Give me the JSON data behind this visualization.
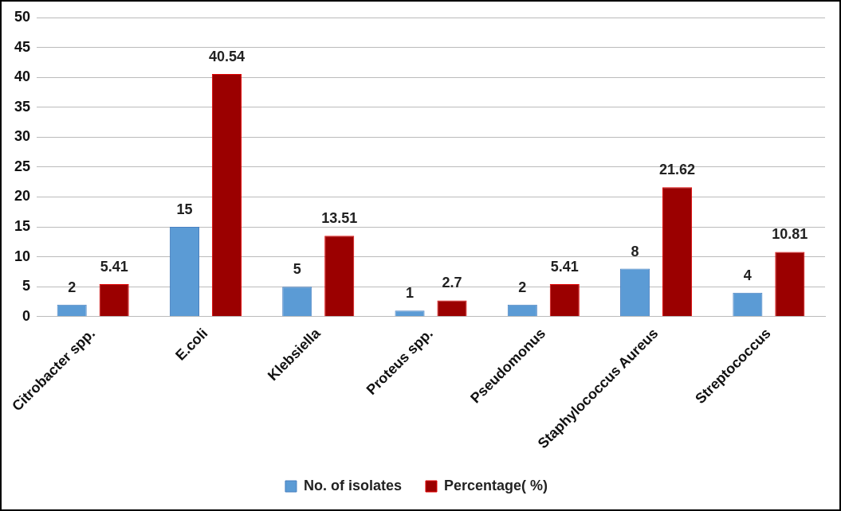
{
  "chart_data": {
    "type": "bar",
    "categories": [
      "Citrobacter spp.",
      "E.coli",
      "Klebsiella",
      "Proteus spp.",
      "Pseudomonus",
      "Staphylococcus Aureus",
      "Streptococcus"
    ],
    "series": [
      {
        "name": "No. of isolates",
        "color": "#5b9bd5",
        "values": [
          2,
          15,
          5,
          1,
          2,
          8,
          4
        ]
      },
      {
        "name": "Percentage( %)",
        "color": "#9b0000",
        "values": [
          5.41,
          40.54,
          13.51,
          2.7,
          5.41,
          21.62,
          10.81
        ]
      }
    ],
    "ylim": [
      0,
      50
    ],
    "yticks": [
      0,
      5,
      10,
      15,
      20,
      25,
      30,
      35,
      40,
      45,
      50
    ],
    "grid": "y",
    "legend": "bottom",
    "data_labels": true
  }
}
